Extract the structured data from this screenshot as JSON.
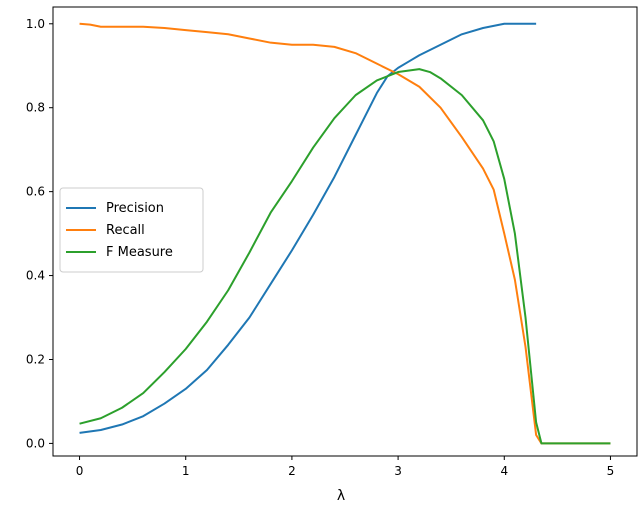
{
  "chart_data": {
    "type": "line",
    "title": "",
    "xlabel": "λ",
    "ylabel": "",
    "xlim": [
      -0.25,
      5.25
    ],
    "ylim": [
      -0.03,
      1.04
    ],
    "xticks": [
      "0",
      "1",
      "2",
      "3",
      "4",
      "5"
    ],
    "yticks": [
      "0.0",
      "0.2",
      "0.4",
      "0.6",
      "0.8",
      "1.0"
    ],
    "grid": false,
    "legend_position": "center-left",
    "series": [
      {
        "name": "Precision",
        "color": "#1f77b4",
        "points": [
          [
            0.0,
            0.025
          ],
          [
            0.2,
            0.032
          ],
          [
            0.4,
            0.045
          ],
          [
            0.6,
            0.065
          ],
          [
            0.8,
            0.095
          ],
          [
            1.0,
            0.13
          ],
          [
            1.2,
            0.175
          ],
          [
            1.4,
            0.235
          ],
          [
            1.6,
            0.3
          ],
          [
            1.8,
            0.38
          ],
          [
            2.0,
            0.46
          ],
          [
            2.2,
            0.545
          ],
          [
            2.4,
            0.635
          ],
          [
            2.6,
            0.735
          ],
          [
            2.8,
            0.835
          ],
          [
            2.9,
            0.875
          ],
          [
            3.0,
            0.895
          ],
          [
            3.1,
            0.91
          ],
          [
            3.2,
            0.925
          ],
          [
            3.4,
            0.95
          ],
          [
            3.6,
            0.975
          ],
          [
            3.8,
            0.99
          ],
          [
            4.0,
            1.0
          ],
          [
            4.3,
            1.0
          ]
        ]
      },
      {
        "name": "Recall",
        "color": "#ff7f0e",
        "points": [
          [
            0.0,
            1.0
          ],
          [
            0.1,
            0.998
          ],
          [
            0.2,
            0.993
          ],
          [
            0.4,
            0.993
          ],
          [
            0.6,
            0.993
          ],
          [
            0.8,
            0.99
          ],
          [
            1.0,
            0.985
          ],
          [
            1.2,
            0.98
          ],
          [
            1.4,
            0.975
          ],
          [
            1.6,
            0.965
          ],
          [
            1.8,
            0.955
          ],
          [
            2.0,
            0.95
          ],
          [
            2.2,
            0.95
          ],
          [
            2.4,
            0.945
          ],
          [
            2.6,
            0.93
          ],
          [
            2.8,
            0.905
          ],
          [
            3.0,
            0.88
          ],
          [
            3.2,
            0.85
          ],
          [
            3.4,
            0.8
          ],
          [
            3.6,
            0.73
          ],
          [
            3.8,
            0.655
          ],
          [
            3.9,
            0.605
          ],
          [
            4.0,
            0.5
          ],
          [
            4.1,
            0.39
          ],
          [
            4.2,
            0.23
          ],
          [
            4.3,
            0.02
          ],
          [
            4.35,
            0.0
          ],
          [
            5.0,
            0.0
          ]
        ]
      },
      {
        "name": "F Measure",
        "color": "#2ca02c",
        "points": [
          [
            0.0,
            0.047
          ],
          [
            0.2,
            0.06
          ],
          [
            0.4,
            0.085
          ],
          [
            0.6,
            0.12
          ],
          [
            0.8,
            0.17
          ],
          [
            1.0,
            0.225
          ],
          [
            1.2,
            0.29
          ],
          [
            1.4,
            0.365
          ],
          [
            1.6,
            0.455
          ],
          [
            1.8,
            0.55
          ],
          [
            2.0,
            0.625
          ],
          [
            2.2,
            0.705
          ],
          [
            2.4,
            0.775
          ],
          [
            2.6,
            0.83
          ],
          [
            2.8,
            0.865
          ],
          [
            3.0,
            0.885
          ],
          [
            3.2,
            0.892
          ],
          [
            3.3,
            0.885
          ],
          [
            3.4,
            0.87
          ],
          [
            3.6,
            0.83
          ],
          [
            3.8,
            0.77
          ],
          [
            3.9,
            0.72
          ],
          [
            4.0,
            0.63
          ],
          [
            4.1,
            0.5
          ],
          [
            4.2,
            0.3
          ],
          [
            4.3,
            0.05
          ],
          [
            4.35,
            0.0
          ],
          [
            5.0,
            0.0
          ]
        ]
      }
    ]
  }
}
